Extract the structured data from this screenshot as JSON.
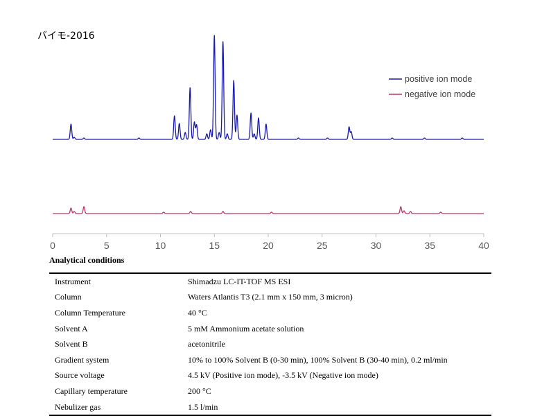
{
  "chart_data": {
    "type": "line",
    "title": "バイモ-2016",
    "x_ticks": [
      "0",
      "5",
      "10",
      "15",
      "20",
      "25",
      "30",
      "35",
      "40"
    ],
    "xlim": [
      0,
      40
    ],
    "xlabel": "",
    "ylabel": "",
    "grid": false,
    "legend_position": "top-right",
    "series": [
      {
        "name": "positive ion mode",
        "color": "#1a1aaa",
        "baseline": 0,
        "peaks": [
          {
            "x": 1.7,
            "h": 22
          },
          {
            "x": 2.0,
            "h": 3
          },
          {
            "x": 2.9,
            "h": 2
          },
          {
            "x": 8.0,
            "h": 2
          },
          {
            "x": 11.3,
            "h": 34
          },
          {
            "x": 11.75,
            "h": 23
          },
          {
            "x": 12.3,
            "h": 10
          },
          {
            "x": 12.75,
            "h": 75
          },
          {
            "x": 13.15,
            "h": 25
          },
          {
            "x": 13.35,
            "h": 21
          },
          {
            "x": 14.3,
            "h": 8
          },
          {
            "x": 14.65,
            "h": 14
          },
          {
            "x": 15.0,
            "h": 150
          },
          {
            "x": 15.45,
            "h": 10
          },
          {
            "x": 15.8,
            "h": 141
          },
          {
            "x": 16.2,
            "h": 8
          },
          {
            "x": 16.8,
            "h": 85
          },
          {
            "x": 17.1,
            "h": 35
          },
          {
            "x": 18.4,
            "h": 38
          },
          {
            "x": 18.7,
            "h": 8
          },
          {
            "x": 19.1,
            "h": 31
          },
          {
            "x": 19.8,
            "h": 22
          },
          {
            "x": 22.8,
            "h": 2
          },
          {
            "x": 25.5,
            "h": 2
          },
          {
            "x": 27.5,
            "h": 18
          },
          {
            "x": 27.7,
            "h": 11
          },
          {
            "x": 31.5,
            "h": 2
          },
          {
            "x": 34.5,
            "h": 2
          },
          {
            "x": 38.0,
            "h": 2
          }
        ]
      },
      {
        "name": "negative ion mode",
        "color": "#c0306a",
        "baseline": 0,
        "peaks": [
          {
            "x": 1.7,
            "h": 8
          },
          {
            "x": 2.0,
            "h": 3
          },
          {
            "x": 2.9,
            "h": 10
          },
          {
            "x": 10.3,
            "h": 2
          },
          {
            "x": 12.8,
            "h": 3
          },
          {
            "x": 15.8,
            "h": 3
          },
          {
            "x": 20.3,
            "h": 2
          },
          {
            "x": 32.3,
            "h": 10
          },
          {
            "x": 32.6,
            "h": 4
          },
          {
            "x": 33.2,
            "h": 3
          },
          {
            "x": 36.0,
            "h": 2
          }
        ]
      }
    ]
  },
  "conditions": {
    "heading": "Analytical conditions",
    "rows": [
      {
        "key": "Instrument",
        "value": "Shimadzu LC-IT-TOF MS ESI"
      },
      {
        "key": "Column",
        "value": "Waters Atlantis T3 (2.1 mm x 150 mm, 3 micron)"
      },
      {
        "key": "Column Temperature",
        "value": "40 °C"
      },
      {
        "key": "Solvent A",
        "value": "5 mM Ammonium acetate solution"
      },
      {
        "key": "Solvent B",
        "value": "acetonitrile"
      },
      {
        "key": "Gradient system",
        "value": "10% to 100% Solvent B (0-30 min), 100% Solvent B (30-40 min), 0.2 ml/min"
      },
      {
        "key": "Source voltage",
        "value": "4.5 kV (Positive ion mode), -3.5 kV (Negative ion mode)"
      },
      {
        "key": "Capillary temperature",
        "value": "200 °C"
      },
      {
        "key": "Nebulizer gas",
        "value": "1.5 l/min"
      }
    ]
  }
}
